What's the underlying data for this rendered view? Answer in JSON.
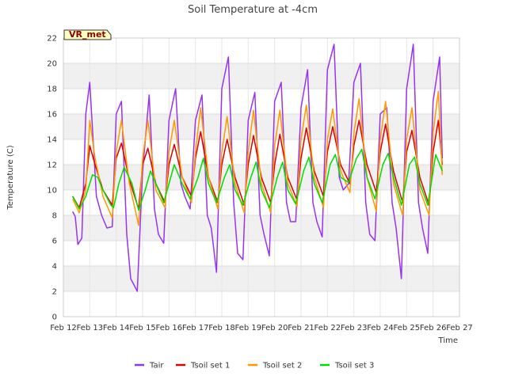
{
  "badge": "VR_met",
  "chart_data": {
    "type": "line",
    "title": "Soil Temperature at -4cm",
    "xlabel": "Time",
    "ylabel": "Temperature (C)",
    "ylim": [
      0,
      22
    ],
    "xlim": [
      12,
      27
    ],
    "y_ticks": [
      0,
      2,
      4,
      6,
      8,
      10,
      12,
      14,
      16,
      18,
      20,
      22
    ],
    "x_ticks": [
      {
        "v": 12,
        "label": "Feb 12"
      },
      {
        "v": 13,
        "label": "Feb 13"
      },
      {
        "v": 14,
        "label": "Feb 14"
      },
      {
        "v": 15,
        "label": "Feb 15"
      },
      {
        "v": 16,
        "label": "Feb 16"
      },
      {
        "v": 17,
        "label": "Feb 17"
      },
      {
        "v": 18,
        "label": "Feb 18"
      },
      {
        "v": 19,
        "label": "Feb 19"
      },
      {
        "v": 20,
        "label": "Feb 20"
      },
      {
        "v": 21,
        "label": "Feb 21"
      },
      {
        "v": 22,
        "label": "Feb 22"
      },
      {
        "v": 23,
        "label": "Feb 23"
      },
      {
        "v": 24,
        "label": "Feb 24"
      },
      {
        "v": 25,
        "label": "Feb 25"
      },
      {
        "v": 26,
        "label": "Feb 26"
      },
      {
        "v": 27,
        "label": "Feb 27"
      }
    ],
    "grid": true,
    "legend_position": "bottom",
    "series": [
      {
        "name": "Tair",
        "color": "#9933ee",
        "x": [
          12.35,
          12.45,
          12.55,
          12.7,
          12.85,
          13.0,
          13.25,
          13.45,
          13.65,
          13.85,
          14.0,
          14.2,
          14.4,
          14.55,
          14.8,
          15.0,
          15.25,
          15.45,
          15.6,
          15.8,
          16.0,
          16.25,
          16.45,
          16.6,
          16.8,
          17.0,
          17.25,
          17.45,
          17.6,
          17.8,
          18.0,
          18.25,
          18.45,
          18.6,
          18.8,
          19.0,
          19.25,
          19.45,
          19.6,
          19.8,
          20.0,
          20.25,
          20.45,
          20.6,
          20.8,
          21.0,
          21.25,
          21.45,
          21.6,
          21.8,
          22.0,
          22.25,
          22.45,
          22.6,
          22.8,
          23.0,
          23.25,
          23.45,
          23.6,
          23.8,
          24.0,
          24.25,
          24.45,
          24.6,
          24.8,
          25.0,
          25.25,
          25.45,
          25.6,
          25.8,
          26.0,
          26.25,
          26.35
        ],
        "y": [
          8.3,
          7.9,
          5.7,
          6.2,
          16.0,
          18.5,
          9.5,
          8.0,
          7.0,
          7.1,
          16.0,
          17.0,
          6.5,
          3.0,
          2.0,
          11.5,
          17.5,
          8.5,
          6.5,
          5.8,
          15.5,
          18.0,
          10.5,
          9.5,
          8.5,
          15.5,
          17.5,
          8.0,
          7.0,
          3.5,
          18.0,
          20.5,
          9.0,
          5.0,
          4.5,
          15.5,
          17.7,
          8.0,
          6.5,
          4.8,
          17.0,
          18.5,
          9.0,
          7.5,
          7.5,
          16.5,
          19.5,
          9.0,
          7.5,
          6.3,
          19.5,
          21.5,
          11.0,
          10.0,
          10.5,
          18.5,
          20.0,
          9.0,
          6.5,
          6.0,
          16.0,
          16.5,
          9.0,
          7.0,
          3.0,
          18.0,
          21.5,
          9.0,
          7.0,
          5.0,
          17.0,
          20.5,
          12.5
        ]
      },
      {
        "name": "Tsoil set 1",
        "color": "#dd0000",
        "x": [
          12.35,
          12.6,
          12.85,
          13.0,
          13.2,
          13.5,
          13.85,
          14.0,
          14.2,
          14.5,
          14.85,
          15.0,
          15.2,
          15.5,
          15.85,
          16.0,
          16.2,
          16.5,
          16.85,
          17.0,
          17.2,
          17.5,
          17.85,
          18.0,
          18.2,
          18.5,
          18.85,
          19.0,
          19.2,
          19.5,
          19.85,
          20.0,
          20.2,
          20.5,
          20.85,
          21.0,
          21.2,
          21.5,
          21.85,
          22.0,
          22.2,
          22.5,
          22.85,
          23.0,
          23.2,
          23.5,
          23.85,
          24.0,
          24.2,
          24.5,
          24.85,
          25.0,
          25.2,
          25.5,
          25.85,
          26.0,
          26.2,
          26.35
        ],
        "y": [
          9.5,
          8.6,
          10.5,
          13.5,
          12.0,
          10.0,
          8.8,
          12.5,
          13.7,
          10.8,
          8.5,
          12.0,
          13.3,
          10.5,
          9.0,
          12.0,
          13.6,
          11.0,
          9.5,
          12.5,
          14.6,
          11.0,
          9.0,
          12.0,
          14.0,
          11.0,
          8.8,
          12.0,
          14.3,
          11.0,
          9.0,
          12.0,
          14.4,
          11.0,
          9.2,
          12.5,
          14.9,
          11.5,
          9.5,
          13.0,
          15.0,
          12.0,
          10.5,
          13.5,
          15.5,
          12.0,
          9.8,
          13.0,
          15.2,
          11.5,
          9.0,
          13.0,
          14.7,
          11.0,
          8.8,
          13.0,
          15.5,
          12.0
        ]
      },
      {
        "name": "Tsoil set 2",
        "color": "#ff9900",
        "x": [
          12.35,
          12.6,
          12.85,
          13.0,
          13.2,
          13.5,
          13.85,
          14.0,
          14.2,
          14.5,
          14.85,
          15.0,
          15.2,
          15.5,
          15.85,
          16.0,
          16.2,
          16.5,
          16.85,
          17.0,
          17.2,
          17.5,
          17.85,
          18.0,
          18.2,
          18.5,
          18.85,
          19.0,
          19.2,
          19.5,
          19.85,
          20.0,
          20.2,
          20.5,
          20.85,
          21.0,
          21.2,
          21.5,
          21.85,
          22.0,
          22.2,
          22.5,
          22.85,
          23.0,
          23.2,
          23.5,
          23.85,
          24.0,
          24.2,
          24.5,
          24.85,
          25.0,
          25.2,
          25.5,
          25.85,
          26.0,
          26.2,
          26.35
        ],
        "y": [
          9.3,
          8.2,
          10.0,
          15.5,
          12.5,
          9.5,
          7.8,
          13.0,
          15.5,
          10.5,
          7.2,
          12.5,
          15.5,
          10.0,
          8.6,
          13.0,
          15.5,
          11.0,
          9.0,
          13.0,
          16.5,
          11.0,
          8.5,
          13.0,
          15.8,
          10.5,
          8.2,
          13.0,
          16.3,
          10.5,
          8.2,
          13.5,
          16.3,
          10.5,
          8.7,
          14.0,
          16.7,
          11.0,
          8.6,
          14.0,
          16.4,
          11.5,
          9.8,
          14.5,
          17.2,
          11.0,
          8.3,
          14.0,
          17.0,
          10.5,
          8.0,
          14.0,
          16.5,
          10.0,
          8.0,
          14.5,
          17.8,
          11.2
        ]
      },
      {
        "name": "Tsoil set 3",
        "color": "#00dd00",
        "x": [
          12.35,
          12.6,
          12.85,
          13.1,
          13.3,
          13.5,
          13.8,
          13.9,
          14.1,
          14.3,
          14.6,
          14.85,
          15.1,
          15.3,
          15.5,
          15.8,
          16.0,
          16.2,
          16.5,
          16.8,
          17.1,
          17.3,
          17.5,
          17.8,
          18.1,
          18.3,
          18.5,
          18.8,
          19.1,
          19.3,
          19.5,
          19.8,
          20.1,
          20.3,
          20.5,
          20.8,
          21.1,
          21.3,
          21.5,
          21.8,
          22.1,
          22.3,
          22.5,
          22.8,
          23.1,
          23.3,
          23.5,
          23.8,
          24.1,
          24.3,
          24.5,
          24.8,
          25.1,
          25.3,
          25.5,
          25.8,
          26.1,
          26.35
        ],
        "y": [
          9.5,
          8.5,
          9.5,
          11.2,
          11.0,
          10.0,
          8.8,
          8.6,
          10.5,
          11.8,
          10.5,
          8.4,
          10.0,
          11.5,
          10.5,
          9.0,
          10.5,
          12.0,
          10.5,
          9.3,
          11.0,
          12.5,
          10.5,
          9.0,
          11.0,
          12.0,
          10.0,
          8.8,
          11.0,
          12.2,
          10.0,
          8.6,
          11.0,
          12.2,
          10.0,
          8.9,
          11.5,
          12.6,
          10.5,
          9.0,
          12.0,
          12.8,
          11.0,
          10.6,
          12.5,
          13.2,
          11.0,
          9.3,
          12.0,
          12.9,
          11.0,
          8.8,
          12.0,
          12.6,
          10.5,
          8.8,
          12.8,
          11.5
        ]
      }
    ]
  }
}
